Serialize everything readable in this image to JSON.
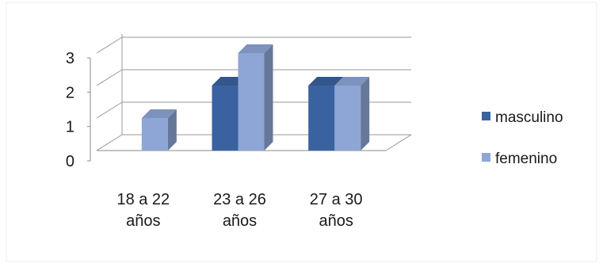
{
  "chart_data": {
    "type": "bar",
    "title": "",
    "xlabel": "",
    "ylabel": "",
    "ylim": [
      0,
      3
    ],
    "yticks": [
      "0",
      "1",
      "2",
      "3"
    ],
    "categories": [
      [
        "18 a 22",
        "años"
      ],
      [
        "23 a 26",
        "años"
      ],
      [
        "27 a 30",
        "años"
      ]
    ],
    "series": [
      {
        "name": "masculino",
        "values": [
          0,
          2,
          2
        ],
        "color": "#3a62a0"
      },
      {
        "name": "femenino",
        "values": [
          1,
          3,
          2
        ],
        "color": "#8ea6d6"
      }
    ],
    "grid": true,
    "legend_position": "right",
    "style": "3d-clustered-column"
  }
}
